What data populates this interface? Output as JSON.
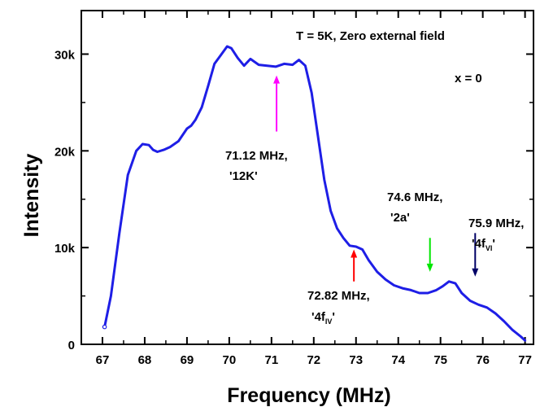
{
  "chart_data": {
    "type": "line",
    "xlabel": "Frequency (MHz)",
    "ylabel": "Intensity",
    "xlim": [
      66.5,
      77.2
    ],
    "ylim": [
      0,
      34500
    ],
    "x_ticks": [
      67,
      68,
      69,
      70,
      71,
      72,
      73,
      74,
      75,
      76,
      77
    ],
    "x_tick_labels": [
      "67",
      "68",
      "69",
      "70",
      "71",
      "72",
      "73",
      "74",
      "75",
      "76",
      "77"
    ],
    "y_ticks": [
      0,
      10000,
      20000,
      30000
    ],
    "y_tick_labels": [
      "0",
      "10k",
      "20k",
      "30k"
    ],
    "grid": false,
    "series": [
      {
        "color": "#1e1ee6",
        "x": [
          67.05,
          67.2,
          67.4,
          67.6,
          67.8,
          67.95,
          68.1,
          68.2,
          68.3,
          68.45,
          68.6,
          68.8,
          69.0,
          69.1,
          69.2,
          69.35,
          69.5,
          69.65,
          69.8,
          69.95,
          70.05,
          70.2,
          70.35,
          70.5,
          70.7,
          70.9,
          71.1,
          71.3,
          71.5,
          71.65,
          71.8,
          71.95,
          72.1,
          72.25,
          72.4,
          72.55,
          72.7,
          72.85,
          73.0,
          73.15,
          73.3,
          73.5,
          73.7,
          73.9,
          74.1,
          74.3,
          74.5,
          74.7,
          74.9,
          75.05,
          75.2,
          75.35,
          75.5,
          75.7,
          75.9,
          76.1,
          76.3,
          76.5,
          76.7,
          76.9,
          77.0
        ],
        "y": [
          1800,
          5000,
          11500,
          17500,
          20000,
          20700,
          20600,
          20100,
          19900,
          20100,
          20400,
          21000,
          22300,
          22600,
          23200,
          24500,
          26700,
          29000,
          29900,
          30800,
          30600,
          29600,
          28800,
          29500,
          28900,
          28800,
          28700,
          29000,
          28900,
          29400,
          28800,
          26000,
          21500,
          17000,
          13800,
          12000,
          11000,
          10200,
          10100,
          9800,
          8700,
          7500,
          6700,
          6100,
          5800,
          5600,
          5300,
          5300,
          5600,
          6000,
          6500,
          6300,
          5300,
          4500,
          4100,
          3800,
          3200,
          2400,
          1500,
          800,
          400
        ]
      }
    ],
    "annotations": [
      {
        "id": "cond",
        "text": "T = 5K, Zero external field"
      },
      {
        "id": "x0",
        "text": "x = 0"
      },
      {
        "id": "a1",
        "line1": "71.12 MHz,",
        "line2": "'12K'",
        "arrow_color": "#ff00ff",
        "arrow_x": 71.12,
        "arrow_from_y": 22000,
        "arrow_to_y": 27800
      },
      {
        "id": "a2",
        "line1": "72.82 MHz,",
        "line2_pre": "'4f",
        "line2_sub": "IV",
        "line2_post": "'",
        "arrow_color": "#ff0000",
        "arrow_x": 72.95,
        "arrow_from_y": 6500,
        "arrow_to_y": 9800
      },
      {
        "id": "a3",
        "line1": "74.6 MHz,",
        "line2": "'2a'",
        "arrow_color": "#00e600",
        "arrow_x": 74.75,
        "arrow_from_y": 11000,
        "arrow_to_y": 7500
      },
      {
        "id": "a4",
        "line1": "75.9 MHz,",
        "line2_pre": "'4f",
        "line2_sub": "VI",
        "line2_post": "'",
        "arrow_color": "#000066",
        "arrow_x": 75.82,
        "arrow_from_y": 11500,
        "arrow_to_y": 7000
      }
    ]
  }
}
